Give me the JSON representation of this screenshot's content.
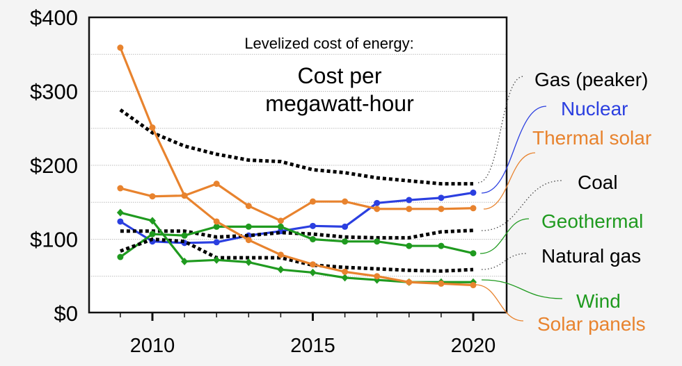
{
  "chart_data": {
    "type": "line",
    "title": "Levelized cost of energy:",
    "subtitle": "Cost per megawatt-hour",
    "subtitle_lines": [
      "Cost per",
      "megawatt-hour"
    ],
    "xlabel": "",
    "ylabel": "",
    "x": [
      2009,
      2010,
      2011,
      2012,
      2013,
      2014,
      2015,
      2016,
      2017,
      2018,
      2019,
      2020
    ],
    "xlim": [
      2008,
      2021
    ],
    "ylim": [
      0,
      400
    ],
    "x_ticks": [
      2010,
      2015,
      2020
    ],
    "x_tick_labels": [
      "2010",
      "2015",
      "2020"
    ],
    "y_ticks": [
      0,
      100,
      200,
      300,
      400
    ],
    "y_tick_labels": [
      "$0",
      "$100",
      "$200",
      "$300",
      "$400"
    ],
    "grid": "horizontal dotted every 50",
    "legend": "labels at right with connector lines",
    "series": [
      {
        "name": "Gas (peaker)",
        "color": "#000000",
        "style": "dotted",
        "marker": "none",
        "values": [
          275,
          244,
          226,
          215,
          207,
          205,
          194,
          190,
          183,
          179,
          175,
          175
        ]
      },
      {
        "name": "Nuclear",
        "color": "#2b3fe0",
        "style": "solid",
        "marker": "circle",
        "values": [
          124,
          97,
          95,
          96,
          105,
          111,
          118,
          117,
          149,
          153,
          156,
          163
        ]
      },
      {
        "name": "Thermal solar",
        "color": "#e8832e",
        "style": "solid",
        "marker": "circle",
        "values": [
          169,
          158,
          159,
          175,
          145,
          125,
          151,
          151,
          141,
          141,
          141,
          142
        ]
      },
      {
        "name": "Coal",
        "color": "#000000",
        "style": "dotted",
        "marker": "none",
        "values": [
          111,
          111,
          111,
          103,
          105,
          109,
          107,
          103,
          102,
          102,
          110,
          112
        ]
      },
      {
        "name": "Geothermal",
        "color": "#1f9a1f",
        "style": "solid",
        "marker": "circle",
        "values": [
          76,
          107,
          105,
          117,
          117,
          117,
          100,
          97,
          97,
          91,
          91,
          81
        ]
      },
      {
        "name": "Natural gas",
        "color": "#000000",
        "style": "dotted",
        "marker": "none",
        "values": [
          84,
          100,
          97,
          75,
          75,
          75,
          65,
          62,
          60,
          58,
          57,
          59
        ]
      },
      {
        "name": "Wind",
        "color": "#1f9a1f",
        "style": "solid",
        "marker": "diamond",
        "values": [
          136,
          125,
          70,
          72,
          69,
          59,
          55,
          48,
          45,
          42,
          42,
          42
        ]
      },
      {
        "name": "Solar panels",
        "color": "#e8832e",
        "style": "solid",
        "marker": "circle",
        "values": [
          359,
          251,
          159,
          124,
          99,
          79,
          66,
          56,
          50,
          42,
          40,
          38
        ]
      }
    ]
  }
}
